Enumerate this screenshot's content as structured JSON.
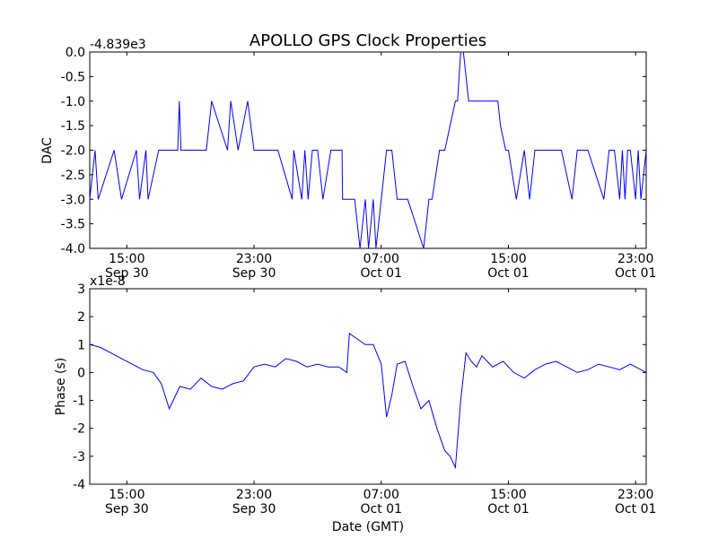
{
  "title": "APOLLO GPS Clock Properties",
  "chart_data": [
    {
      "type": "line",
      "ylabel": "DAC",
      "offset_text": "-4.839e3",
      "xlim": [
        "Sep 30 12:40",
        "Oct 01 23:40"
      ],
      "ylim": [
        -4.0,
        0.0
      ],
      "yticks": [
        "0.0",
        "-0.5",
        "-1.0",
        "-1.5",
        "-2.0",
        "-2.5",
        "-3.0",
        "-3.5",
        "-4.0"
      ],
      "ytick_values": [
        0.0,
        -0.5,
        -1.0,
        -1.5,
        -2.0,
        -2.5,
        -3.0,
        -3.5,
        -4.0
      ],
      "xticks": [
        {
          "time": "15:00",
          "date": "Sep 30"
        },
        {
          "time": "23:00",
          "date": "Sep 30"
        },
        {
          "time": "07:00",
          "date": "Oct 01"
        },
        {
          "time": "15:00",
          "date": "Oct 01"
        },
        {
          "time": "23:00",
          "date": "Oct 01"
        }
      ],
      "xtick_values": [
        "Sep 30 15:00",
        "Sep 30 23:00",
        "Oct 01 07:00",
        "Oct 01 15:00",
        "Oct 01 23:00"
      ],
      "color": "#0000ff",
      "series": [
        {
          "x": [
            "Sep 30 12:40",
            "Sep 30 13:00",
            "Sep 30 13:12",
            "Sep 30 14:12",
            "Sep 30 14:40",
            "Sep 30 15:36",
            "Sep 30 15:48",
            "Sep 30 16:12",
            "Sep 30 16:20",
            "Sep 30 17:00",
            "Sep 30 17:04",
            "Sep 30 18:12",
            "Sep 30 18:18",
            "Sep 30 18:24",
            "Sep 30 19:00",
            "Sep 30 20:00",
            "Sep 30 20:20",
            "Sep 30 21:20",
            "Sep 30 21:32",
            "Sep 30 22:00",
            "Sep 30 22:36",
            "Sep 30 23:00",
            "Sep 30 23:10",
            "Sep 30 23:30",
            "Oct 01 00:00",
            "Oct 01 00:30",
            "Oct 01 01:24",
            "Oct 01 01:30",
            "Oct 01 02:00",
            "Oct 01 02:12",
            "Oct 01 02:24",
            "Oct 01 02:40",
            "Oct 01 03:00",
            "Oct 01 03:20",
            "Oct 01 03:50",
            "Oct 01 04:32",
            "Oct 01 04:34",
            "Oct 01 05:00",
            "Oct 01 05:20",
            "Oct 01 05:40",
            "Oct 01 06:00",
            "Oct 01 06:12",
            "Oct 01 06:30",
            "Oct 01 06:40",
            "Oct 01 07:00",
            "Oct 01 07:20",
            "Oct 01 07:40",
            "Oct 01 08:00",
            "Oct 01 08:30",
            "Oct 01 08:40",
            "Oct 01 09:40",
            "Oct 01 10:00",
            "Oct 01 10:12",
            "Oct 01 10:40",
            "Oct 01 11:00",
            "Oct 01 11:20",
            "Oct 01 11:40",
            "Oct 01 11:48",
            "Oct 01 12:00",
            "Oct 01 12:10",
            "Oct 01 12:30",
            "Oct 01 13:00",
            "Oct 01 13:40",
            "Oct 01 14:20",
            "Oct 01 14:30",
            "Oct 01 14:50",
            "Oct 01 15:00",
            "Oct 01 15:30",
            "Oct 01 16:00",
            "Oct 01 16:20",
            "Oct 01 16:40",
            "Oct 01 17:20",
            "Oct 01 18:00",
            "Oct 01 18:20",
            "Oct 01 19:00",
            "Oct 01 19:20",
            "Oct 01 20:00",
            "Oct 01 21:00",
            "Oct 01 21:20",
            "Oct 01 21:40",
            "Oct 01 22:00",
            "Oct 01 22:10",
            "Oct 01 22:20",
            "Oct 01 22:30",
            "Oct 01 22:40",
            "Oct 01 23:00",
            "Oct 01 23:10",
            "Oct 01 23:20",
            "Oct 01 23:40"
          ],
          "values": [
            -3.0,
            -2.0,
            -3.0,
            -2.0,
            -3.0,
            -2.0,
            -3.0,
            -2.0,
            -3.0,
            -2.0,
            -2.0,
            -2.0,
            -1.0,
            -2.0,
            -2.0,
            -2.0,
            -1.0,
            -2.0,
            -1.0,
            -2.0,
            -1.0,
            -2.0,
            -2.0,
            -2.0,
            -2.0,
            -2.0,
            -3.0,
            -2.0,
            -3.0,
            -2.0,
            -3.0,
            -2.0,
            -2.0,
            -3.0,
            -2.0,
            -2.0,
            -3.0,
            -3.0,
            -3.0,
            -4.0,
            -3.0,
            -4.0,
            -3.0,
            -4.0,
            -3.0,
            -2.0,
            -2.0,
            -3.0,
            -3.0,
            -3.0,
            -4.0,
            -3.0,
            -3.0,
            -2.0,
            -2.0,
            -1.5,
            -1.0,
            -1.0,
            0.0,
            0.0,
            -1.0,
            -1.0,
            -1.0,
            -1.0,
            -1.5,
            -2.0,
            -2.0,
            -3.0,
            -2.0,
            -3.0,
            -2.0,
            -2.0,
            -2.0,
            -2.0,
            -3.0,
            -2.0,
            -2.0,
            -3.0,
            -2.0,
            -2.0,
            -3.0,
            -2.0,
            -3.0,
            -2.0,
            -2.0,
            -3.0,
            -2.0,
            -3.0,
            -2.0
          ]
        }
      ]
    },
    {
      "type": "line",
      "ylabel": "Phase (s)",
      "xlabel": "Date (GMT)",
      "offset_text": "x1e-8",
      "xlim": [
        "Sep 30 12:40",
        "Oct 01 23:40"
      ],
      "ylim": [
        -4,
        3
      ],
      "yticks": [
        "3",
        "2",
        "1",
        "0",
        "-1",
        "-2",
        "-3",
        "-4"
      ],
      "ytick_values": [
        3,
        2,
        1,
        0,
        -1,
        -2,
        -3,
        -4
      ],
      "xticks": [
        {
          "time": "15:00",
          "date": "Sep 30"
        },
        {
          "time": "23:00",
          "date": "Sep 30"
        },
        {
          "time": "07:00",
          "date": "Oct 01"
        },
        {
          "time": "15:00",
          "date": "Oct 01"
        },
        {
          "time": "23:00",
          "date": "Oct 01"
        }
      ],
      "xtick_values": [
        "Sep 30 15:00",
        "Sep 30 23:00",
        "Oct 01 07:00",
        "Oct 01 15:00",
        "Oct 01 23:00"
      ],
      "color": "#0000ff",
      "series": [
        {
          "x": [
            "Sep 30 12:40",
            "Sep 30 13:20",
            "Sep 30 14:00",
            "Sep 30 14:40",
            "Sep 30 15:20",
            "Sep 30 16:00",
            "Sep 30 16:40",
            "Sep 30 17:10",
            "Sep 30 17:40",
            "Sep 30 18:20",
            "Sep 30 19:00",
            "Sep 30 19:40",
            "Sep 30 20:20",
            "Sep 30 21:00",
            "Sep 30 21:40",
            "Sep 30 22:20",
            "Sep 30 23:00",
            "Sep 30 23:40",
            "Oct 01 00:20",
            "Oct 01 01:00",
            "Oct 01 01:40",
            "Oct 01 02:20",
            "Oct 01 03:00",
            "Oct 01 03:40",
            "Oct 01 04:20",
            "Oct 01 04:50",
            "Oct 01 05:00",
            "Oct 01 05:30",
            "Oct 01 06:00",
            "Oct 01 06:30",
            "Oct 01 07:00",
            "Oct 01 07:20",
            "Oct 01 07:40",
            "Oct 01 08:00",
            "Oct 01 08:30",
            "Oct 01 09:00",
            "Oct 01 09:30",
            "Oct 01 10:00",
            "Oct 01 10:30",
            "Oct 01 11:00",
            "Oct 01 11:20",
            "Oct 01 11:40",
            "Oct 01 12:00",
            "Oct 01 12:20",
            "Oct 01 12:40",
            "Oct 01 13:00",
            "Oct 01 13:20",
            "Oct 01 13:40",
            "Oct 01 14:00",
            "Oct 01 14:40",
            "Oct 01 15:20",
            "Oct 01 16:00",
            "Oct 01 16:40",
            "Oct 01 17:20",
            "Oct 01 18:00",
            "Oct 01 18:40",
            "Oct 01 19:20",
            "Oct 01 20:00",
            "Oct 01 20:40",
            "Oct 01 21:20",
            "Oct 01 22:00",
            "Oct 01 22:40",
            "Oct 01 23:20",
            "Oct 01 23:40"
          ],
          "values": [
            1.0,
            0.9,
            0.7,
            0.5,
            0.3,
            0.1,
            0.0,
            -0.4,
            -1.3,
            -0.5,
            -0.6,
            -0.2,
            -0.5,
            -0.6,
            -0.4,
            -0.3,
            0.2,
            0.3,
            0.2,
            0.5,
            0.4,
            0.2,
            0.3,
            0.2,
            0.2,
            0.0,
            1.4,
            1.2,
            1.0,
            1.0,
            0.3,
            -1.6,
            -0.8,
            0.3,
            0.4,
            -0.5,
            -1.3,
            -1.0,
            -2.0,
            -2.8,
            -3.0,
            -3.4,
            -1.0,
            0.7,
            0.4,
            0.2,
            0.6,
            0.4,
            0.2,
            0.4,
            0.0,
            -0.2,
            0.1,
            0.3,
            0.4,
            0.2,
            0.0,
            0.1,
            0.3,
            0.2,
            0.1,
            0.3,
            0.1,
            0.0
          ]
        }
      ]
    }
  ]
}
